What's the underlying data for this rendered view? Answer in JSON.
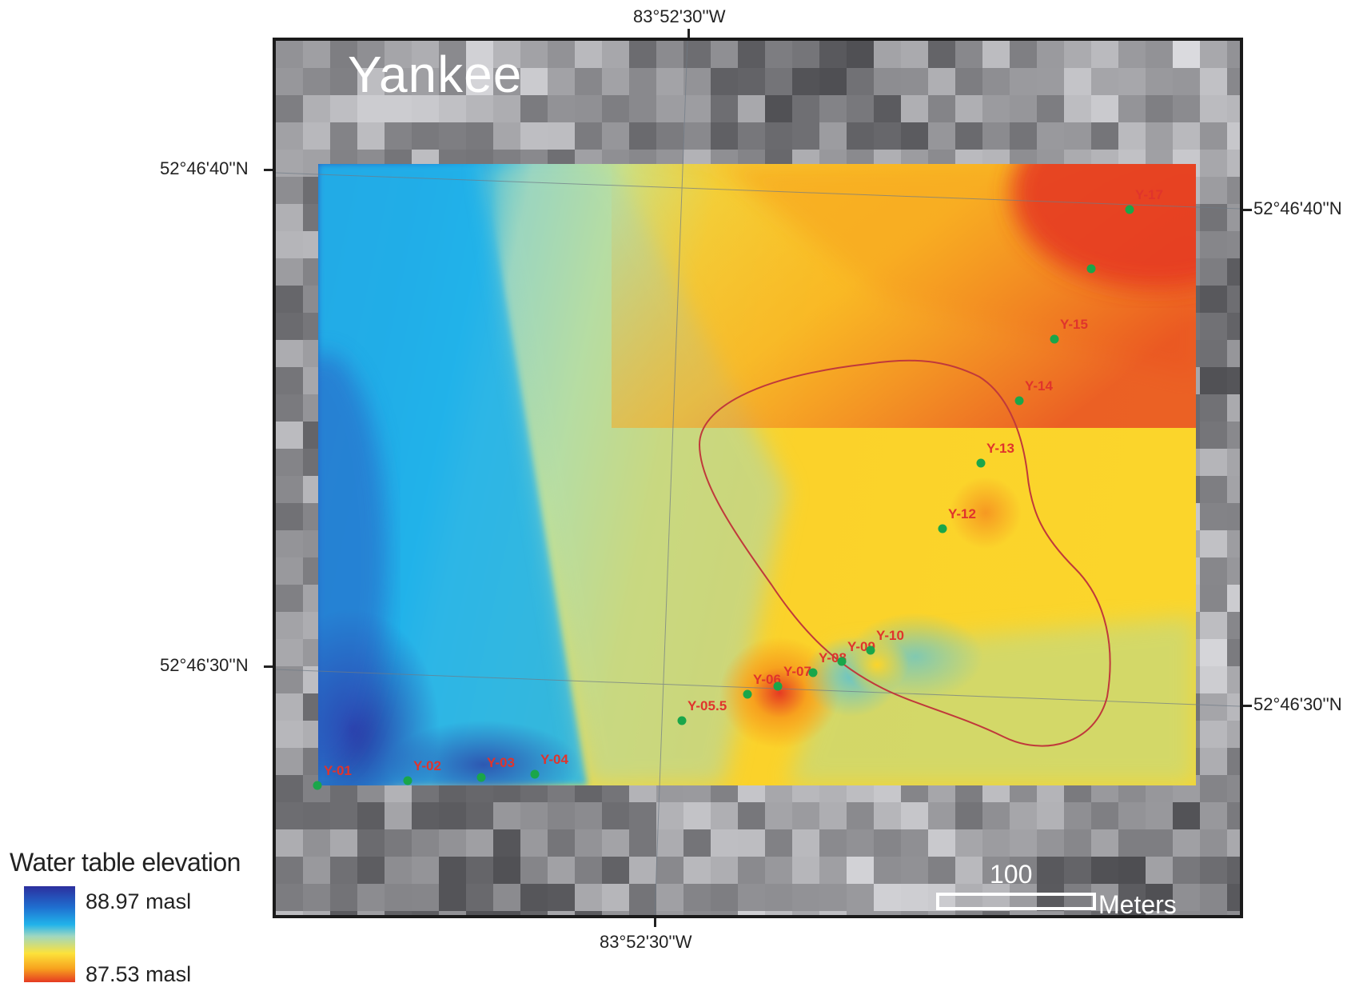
{
  "map": {
    "title": "Yankee",
    "coords": {
      "top_lon": "83°52'30''W",
      "bottom_lon": "83°52'30''W",
      "left_lat_top": "52°46'40''N",
      "left_lat_bottom": "52°46'30''N",
      "right_lat_top": "52°46'40''N",
      "right_lat_bottom": "52°46'30''N"
    },
    "wells": [
      {
        "label": "Y-01"
      },
      {
        "label": "Y-02"
      },
      {
        "label": "Y-03"
      },
      {
        "label": "Y-04"
      },
      {
        "label": "Y-05.5"
      },
      {
        "label": "Y-06"
      },
      {
        "label": "Y-07"
      },
      {
        "label": "Y-08"
      },
      {
        "label": "Y-09"
      },
      {
        "label": "Y-10"
      },
      {
        "label": "Y-12"
      },
      {
        "label": "Y-13"
      },
      {
        "label": "Y-14"
      },
      {
        "label": "Y-15"
      },
      {
        "label": "Y-17"
      }
    ],
    "colors": {
      "well_marker": "#1aa64a",
      "well_label": "#e0342c",
      "outline": "#c0393b",
      "high": "#2c2f9e",
      "low": "#e63a22"
    }
  },
  "legend": {
    "title": "Water table elevation",
    "max_label": "88.97 masl",
    "min_label": "87.53 masl"
  },
  "scale": {
    "value": "100",
    "unit": "Meters"
  }
}
